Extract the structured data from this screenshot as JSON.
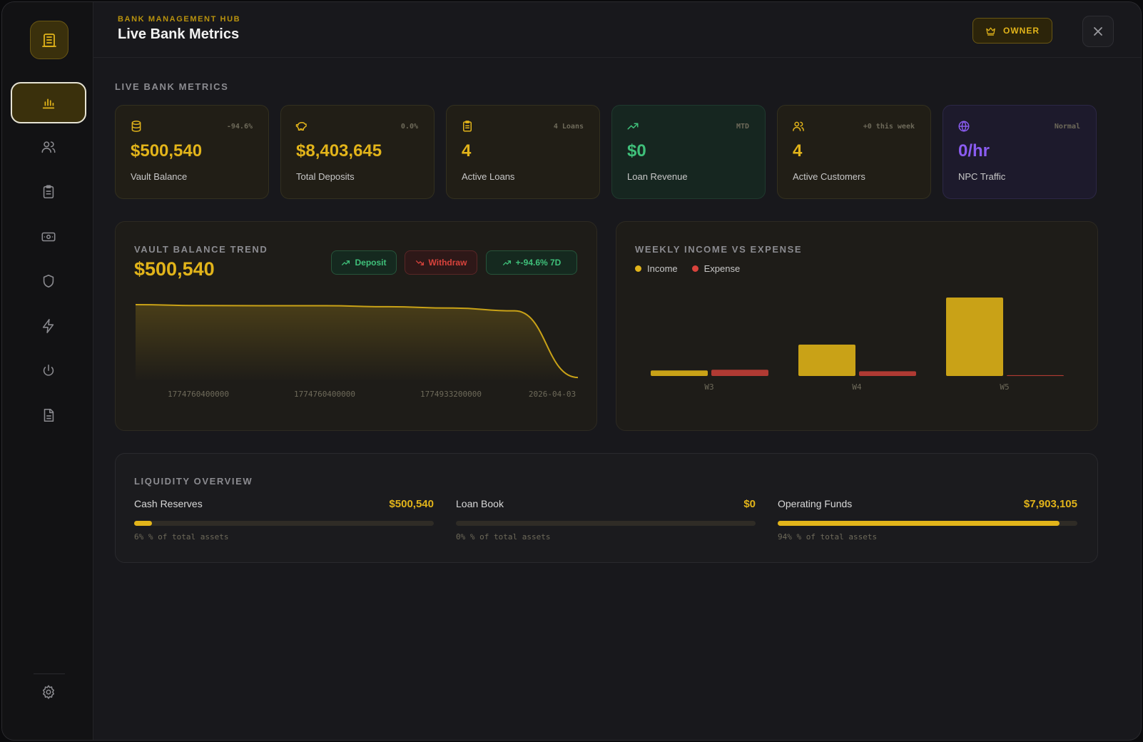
{
  "header": {
    "kicker": "BANK MANAGEMENT HUB",
    "title": "Live Bank Metrics",
    "owner_label": "OWNER"
  },
  "section_label": "LIVE BANK METRICS",
  "colors": {
    "gold": "#e2b41a",
    "green": "#3fc07a",
    "red": "#d9433c",
    "purple": "#8a5cf0"
  },
  "sidebar": {
    "items": [
      {
        "icon": "bar-chart-icon"
      },
      {
        "icon": "users-icon"
      },
      {
        "icon": "clipboard-icon"
      },
      {
        "icon": "banknote-icon"
      },
      {
        "icon": "shield-icon"
      },
      {
        "icon": "lightning-icon"
      },
      {
        "icon": "power-icon"
      },
      {
        "icon": "document-icon"
      },
      {
        "icon": "gear-icon"
      }
    ]
  },
  "cards": [
    {
      "icon": "database-icon",
      "badge": "-94.6%",
      "value": "$500,540",
      "label": "Vault Balance"
    },
    {
      "icon": "piggy-bank-icon",
      "badge": "0.0%",
      "value": "$8,403,645",
      "label": "Total Deposits"
    },
    {
      "icon": "clipboard-icon",
      "badge": "4 Loans",
      "value": "4",
      "label": "Active Loans"
    },
    {
      "icon": "trend-up-icon",
      "badge": "MTD",
      "value": "$0",
      "label": "Loan Revenue"
    },
    {
      "icon": "users-icon",
      "badge": "+0 this week",
      "value": "4",
      "label": "Active Customers"
    },
    {
      "icon": "globe-icon",
      "badge": "Normal",
      "value": "0/hr",
      "label": "NPC Traffic"
    }
  ],
  "vault_panel": {
    "title": "VAULT BALANCE TREND",
    "value": "$500,540",
    "deposit_label": "Deposit",
    "withdraw_label": "Withdraw",
    "change_label": "+-94.6% 7D"
  },
  "weekly_panel": {
    "title": "WEEKLY INCOME VS EXPENSE",
    "legend_income": "Income",
    "legend_expense": "Expense"
  },
  "chart_data": [
    {
      "type": "area",
      "x_tick_labels": [
        "1774760400000",
        "1774760400000",
        "1774933200000",
        "2026-04-03"
      ],
      "values": [
        100,
        98.8,
        98.6,
        98.6,
        97.3,
        95.6,
        92.0,
        5.4
      ],
      "grid": false
    },
    {
      "type": "bar",
      "categories": [
        "W3",
        "W4",
        "W5"
      ],
      "series": [
        {
          "name": "Income",
          "values": [
            7,
            40,
            100
          ]
        },
        {
          "name": "Expense",
          "values": [
            8,
            6,
            1
          ]
        }
      ],
      "grid": false
    }
  ],
  "liquidity": {
    "title": "LIQUIDITY OVERVIEW",
    "items": [
      {
        "name": "Cash Reserves",
        "amount": "$500,540",
        "percent": 6,
        "pct_label": "6% % of total assets"
      },
      {
        "name": "Loan Book",
        "amount": "$0",
        "percent": 0,
        "pct_label": "0% % of total assets"
      },
      {
        "name": "Operating Funds",
        "amount": "$7,903,105",
        "percent": 94,
        "pct_label": "94% % of total assets"
      }
    ]
  }
}
